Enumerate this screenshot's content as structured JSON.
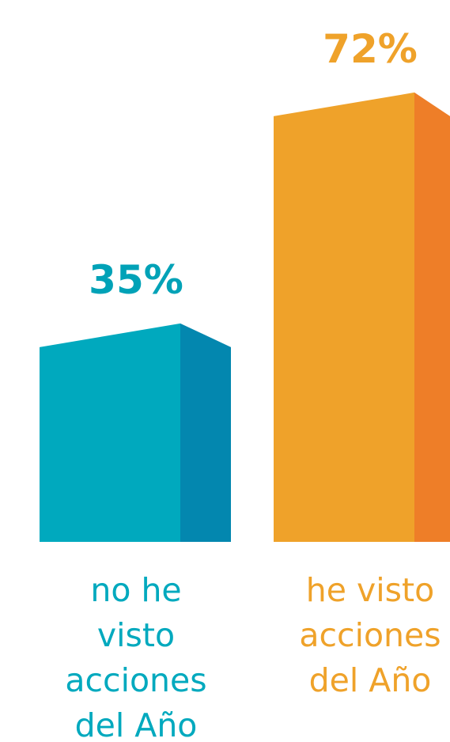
{
  "chart_data": {
    "type": "bar",
    "categories": [
      [
        "no he",
        "visto",
        "acciones",
        "del Año"
      ],
      [
        "he visto",
        "acciones",
        "del Año"
      ]
    ],
    "values": [
      35,
      72
    ],
    "value_labels": [
      "35%",
      "72%"
    ],
    "ylim": [
      0,
      100
    ],
    "grid": false,
    "legend": "none",
    "title": "",
    "xlabel": "",
    "ylabel": ""
  },
  "colors": {
    "bar_front": [
      "#00A9BE",
      "#EFA22A"
    ],
    "bar_side": [
      "#0387AF",
      "#EE7E28"
    ],
    "label_text": [
      "#00A9BE",
      "#EFA22A"
    ],
    "value_text": [
      "#00A2B7",
      "#EFA22A"
    ]
  }
}
